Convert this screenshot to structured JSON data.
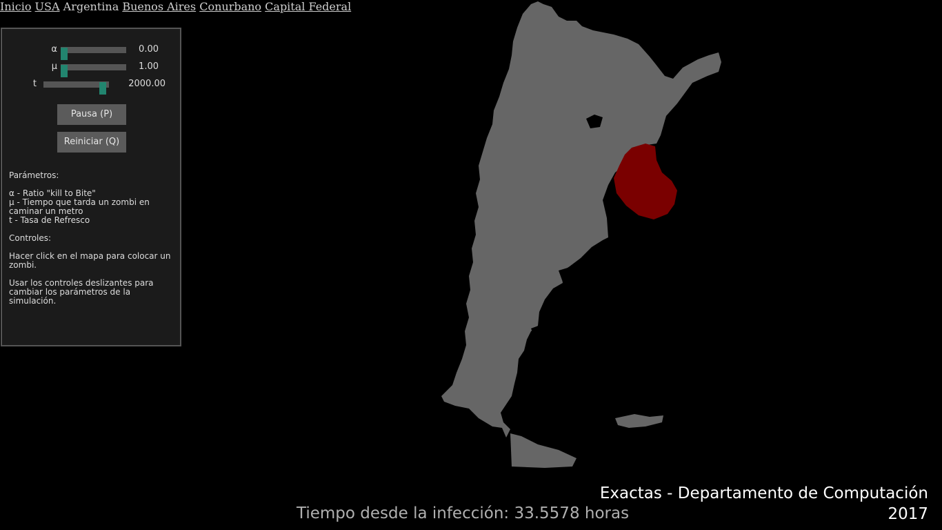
{
  "nav": {
    "items": [
      {
        "label": "Inicio",
        "link": true
      },
      {
        "label": "USA",
        "link": true
      },
      {
        "label": "Argentina",
        "link": false
      },
      {
        "label": "Buenos Aires",
        "link": true
      },
      {
        "label": "Conurbano",
        "link": true
      },
      {
        "label": "Capital Federal",
        "link": true
      }
    ]
  },
  "controls": {
    "sliders": [
      {
        "symbol": "α",
        "value": "0.00",
        "level": 0.0
      },
      {
        "symbol": "μ",
        "value": "1.00",
        "level": 0.0
      },
      {
        "symbol": "t",
        "value": "2000.00",
        "level": 0.95
      }
    ],
    "pause_label": "Pausa (P)",
    "reset_label": "Reiniciar (Q)",
    "params_heading": "Parámetros:",
    "param_alpha": "α - Ratio \"kill to Bite\"",
    "param_mu": "μ - Tiempo que tarda un zombi en caminar un metro",
    "param_t": "t - Tasa de Refresco",
    "controls_heading": "Controles:",
    "help_click": "Hacer click en el mapa para colocar un zombi.",
    "help_sliders": "Usar los controles deslizantes para cambiar los parámetros de la simulación."
  },
  "status": {
    "elapsed": "Tiempo desde la infección: 33.5578 horas"
  },
  "credits": {
    "line1": "Exactas - Departamento de Computación",
    "line2": "2017"
  },
  "colors": {
    "background": "#000000",
    "panel": "#1b1b1b",
    "slider_thumb": "#22856f",
    "map_land": "#666666",
    "infected": "#7a0000"
  }
}
